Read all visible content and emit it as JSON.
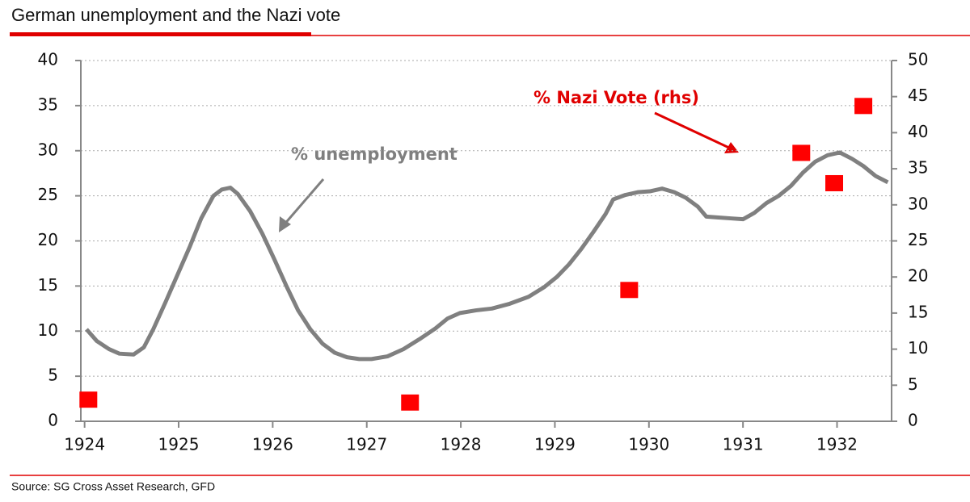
{
  "chart_data": {
    "type": "line",
    "title": "German unemployment and the Nazi vote",
    "source": "Source: SG Cross Asset Research, GFD",
    "annotations": [
      "% unemployment",
      "% Nazi Vote (rhs)"
    ],
    "xlim": [
      1923.96,
      1932.58
    ],
    "xticks": [
      1924,
      1925,
      1926,
      1927,
      1928,
      1929,
      1930,
      1931,
      1932
    ],
    "ylim": [
      0,
      40
    ],
    "yticks": [
      0,
      5,
      10,
      15,
      20,
      25,
      30,
      35,
      40
    ],
    "y2lim": [
      0,
      50
    ],
    "y2ticks": [
      0,
      5,
      10,
      15,
      20,
      25,
      30,
      35,
      40,
      45,
      50
    ],
    "grid": true,
    "series": [
      {
        "type": "line",
        "color": "#808080",
        "x": [
          1924.02,
          1924.13,
          1924.26,
          1924.37,
          1924.52,
          1924.63,
          1924.73,
          1924.86,
          1924.99,
          1925.12,
          1925.24,
          1925.37,
          1925.46,
          1925.55,
          1925.63,
          1925.76,
          1925.89,
          1926.02,
          1926.15,
          1926.27,
          1926.4,
          1926.53,
          1926.66,
          1926.79,
          1926.92,
          1927.05,
          1927.22,
          1927.39,
          1927.56,
          1927.73,
          1927.86,
          1927.99,
          1928.16,
          1928.33,
          1928.51,
          1928.72,
          1928.89,
          1929.02,
          1929.15,
          1929.28,
          1929.41,
          1929.54,
          1929.62,
          1929.75,
          1929.88,
          1930.01,
          1930.14,
          1930.27,
          1930.39,
          1930.52,
          1930.61,
          1930.74,
          1930.87,
          1931.0,
          1931.12,
          1931.25,
          1931.38,
          1931.51,
          1931.64,
          1931.77,
          1931.9,
          1932.03,
          1932.16,
          1932.28,
          1932.41,
          1932.54
        ],
        "values": [
          10.2,
          8.9,
          8.0,
          7.5,
          7.4,
          8.2,
          10.2,
          13.2,
          16.3,
          19.4,
          22.5,
          25.0,
          25.7,
          25.9,
          25.2,
          23.3,
          20.8,
          17.9,
          14.9,
          12.3,
          10.2,
          8.6,
          7.6,
          7.1,
          6.9,
          6.9,
          7.2,
          8.0,
          9.1,
          10.3,
          11.4,
          12.0,
          12.3,
          12.5,
          13.0,
          13.8,
          14.9,
          16.0,
          17.4,
          19.1,
          21.0,
          23.0,
          24.6,
          25.1,
          25.4,
          25.5,
          25.8,
          25.4,
          24.8,
          23.8,
          22.7,
          22.6,
          22.5,
          22.4,
          23.1,
          24.2,
          25.0,
          26.1,
          27.6,
          28.8,
          29.5,
          29.8,
          29.1,
          28.3,
          27.2,
          26.5
        ]
      },
      {
        "type": "scatter",
        "axis": "y2",
        "color": "#ff0000",
        "x": [
          1924.04,
          1927.46,
          1929.79,
          1931.62,
          1931.97,
          1932.28
        ],
        "values": [
          3.0,
          2.6,
          18.2,
          37.2,
          33.0,
          43.7
        ]
      }
    ]
  }
}
